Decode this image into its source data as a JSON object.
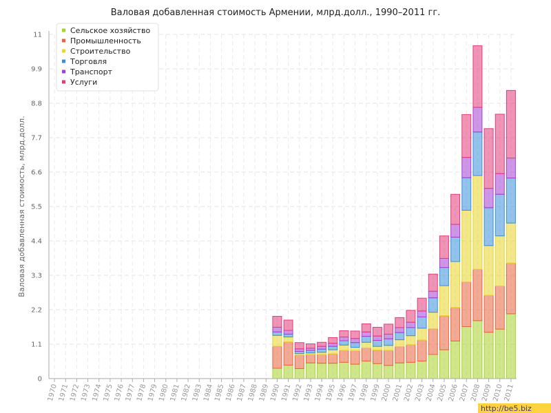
{
  "chart_data": {
    "type": "bar",
    "stacked": true,
    "title": "Валовая добавленная стоимость Армении, млрд.долл., 1990–2011 гг.",
    "xlabel": "",
    "ylabel": "Валовая добавленная стоимость, млрд.долл.",
    "ylim": [
      0,
      11
    ],
    "yticks": [
      "0",
      "1.1",
      "2.2",
      "3.3",
      "4.4",
      "5.5",
      "6.6",
      "7.7",
      "8.8",
      "9.9",
      "11"
    ],
    "grid": true,
    "legend_position": "top-left",
    "categories": [
      "1970",
      "1971",
      "1972",
      "1973",
      "1974",
      "1975",
      "1976",
      "1977",
      "1978",
      "1979",
      "1980",
      "1981",
      "1982",
      "1983",
      "1984",
      "1985",
      "1986",
      "1987",
      "1988",
      "1989",
      "1990",
      "1991",
      "1992",
      "1993",
      "1994",
      "1995",
      "1996",
      "1997",
      "1998",
      "1999",
      "2000",
      "2001",
      "2002",
      "2003",
      "2004",
      "2005",
      "2006",
      "2007",
      "2008",
      "2009",
      "2010",
      "2011"
    ],
    "series": [
      {
        "name": "Сельское хозяйство",
        "color": "#a8d42a",
        "values": [
          null,
          null,
          null,
          null,
          null,
          null,
          null,
          null,
          null,
          null,
          null,
          null,
          null,
          null,
          null,
          null,
          null,
          null,
          null,
          null,
          0.33,
          0.43,
          0.32,
          0.5,
          0.49,
          0.49,
          0.52,
          0.46,
          0.56,
          0.48,
          0.42,
          0.5,
          0.52,
          0.56,
          0.77,
          0.92,
          1.2,
          1.66,
          1.85,
          1.48,
          1.58,
          2.07
        ]
      },
      {
        "name": "Промышленность",
        "color": "#e8643c",
        "values": [
          null,
          null,
          null,
          null,
          null,
          null,
          null,
          null,
          null,
          null,
          null,
          null,
          null,
          null,
          null,
          null,
          null,
          null,
          null,
          null,
          0.7,
          0.74,
          0.43,
          0.27,
          0.28,
          0.3,
          0.38,
          0.43,
          0.42,
          0.43,
          0.48,
          0.52,
          0.56,
          0.67,
          0.82,
          1.09,
          1.07,
          1.43,
          1.64,
          1.18,
          1.38,
          1.62
        ]
      },
      {
        "name": "Строительство",
        "color": "#e8d62a",
        "values": [
          null,
          null,
          null,
          null,
          null,
          null,
          null,
          null,
          null,
          null,
          null,
          null,
          null,
          null,
          null,
          null,
          null,
          null,
          null,
          null,
          0.35,
          0.16,
          0.05,
          0.05,
          0.07,
          0.13,
          0.17,
          0.11,
          0.18,
          0.12,
          0.16,
          0.22,
          0.29,
          0.38,
          0.53,
          0.96,
          1.47,
          2.29,
          3.0,
          1.59,
          1.6,
          1.28
        ]
      },
      {
        "name": "Торговля",
        "color": "#3a8fd9",
        "values": [
          null,
          null,
          null,
          null,
          null,
          null,
          null,
          null,
          null,
          null,
          null,
          null,
          null,
          null,
          null,
          null,
          null,
          null,
          null,
          null,
          0.11,
          0.09,
          0.07,
          0.08,
          0.1,
          0.11,
          0.14,
          0.15,
          0.19,
          0.19,
          0.21,
          0.23,
          0.26,
          0.36,
          0.46,
          0.58,
          0.78,
          1.04,
          1.39,
          1.21,
          1.33,
          1.44
        ]
      },
      {
        "name": "Транспорт",
        "color": "#a63fd4",
        "values": [
          null,
          null,
          null,
          null,
          null,
          null,
          null,
          null,
          null,
          null,
          null,
          null,
          null,
          null,
          null,
          null,
          null,
          null,
          null,
          null,
          0.15,
          0.12,
          0.08,
          0.07,
          0.09,
          0.1,
          0.12,
          0.13,
          0.14,
          0.14,
          0.15,
          0.16,
          0.17,
          0.19,
          0.21,
          0.29,
          0.41,
          0.65,
          0.79,
          0.62,
          0.66,
          0.64
        ]
      },
      {
        "name": "Услуги",
        "color": "#e23c7a",
        "values": [
          null,
          null,
          null,
          null,
          null,
          null,
          null,
          null,
          null,
          null,
          null,
          null,
          null,
          null,
          null,
          null,
          null,
          null,
          null,
          null,
          0.35,
          0.33,
          0.2,
          0.14,
          0.13,
          0.18,
          0.2,
          0.24,
          0.26,
          0.28,
          0.32,
          0.32,
          0.38,
          0.41,
          0.55,
          0.72,
          0.96,
          1.37,
          1.97,
          1.91,
          1.9,
          2.16
        ]
      }
    ]
  },
  "watermark": "http://be5.biz"
}
